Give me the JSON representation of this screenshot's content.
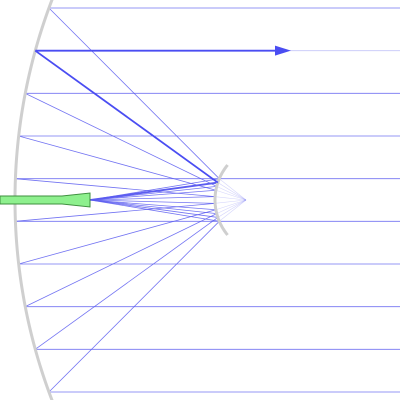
{
  "colors": {
    "background": "#ffffff",
    "ray": "#5b5cf0",
    "ray_highlight": "#4a4df2",
    "mirror": "#cfcfcf",
    "feed_fill": "#8ef08e",
    "feed_stroke": "#3f8f3f"
  },
  "diagram": {
    "type": "parabolic-reflector-ray-diagram",
    "primary_reflector": "concave-mirror",
    "secondary_reflector": "convex-mirror",
    "feed": "green-feed-horn",
    "parallel_ray_count": 10,
    "highlighted_ray_index": 1,
    "arrow_icon": "arrowhead-right-icon"
  }
}
